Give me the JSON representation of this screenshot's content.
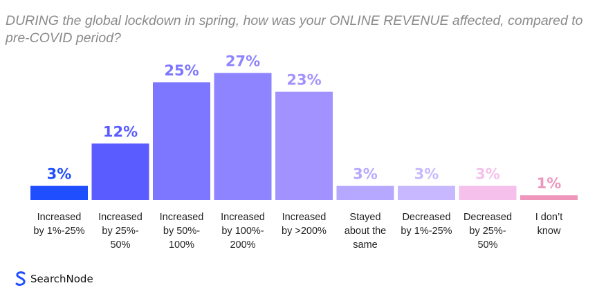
{
  "title": "DURING the global lockdown in spring, how was your ONLINE REVENUE affected, compared to pre-COVID period?",
  "brand": "SearchNode",
  "chart_data": {
    "type": "bar",
    "title": "DURING the global lockdown in spring, how was your ONLINE REVENUE affected, compared to pre-COVID period?",
    "ylim": [
      0,
      30
    ],
    "grid": false,
    "categories": [
      [
        "Increased",
        "by 1%-25%"
      ],
      [
        "Increased",
        "by 25%-",
        "50%"
      ],
      [
        "Increased",
        "by 50%-",
        "100%"
      ],
      [
        "Increased",
        "by 100%-",
        "200%"
      ],
      [
        "Increased",
        "by >200%"
      ],
      [
        "Stayed",
        "about the",
        "same"
      ],
      [
        "Decreased",
        "by 1%-25%"
      ],
      [
        "Decreased",
        "by 25%-",
        "50%"
      ],
      [
        "I don’t",
        "know"
      ]
    ],
    "values": [
      3,
      12,
      25,
      27,
      23,
      3,
      3,
      3,
      1
    ],
    "value_labels": [
      "3%",
      "12%",
      "25%",
      "27%",
      "23%",
      "3%",
      "3%",
      "3%",
      "1%"
    ],
    "colors": [
      "#1f4eff",
      "#5a5cff",
      "#7d76ff",
      "#8f84ff",
      "#a292ff",
      "#b7a8ff",
      "#c8b8ff",
      "#f5c0ec",
      "#ef96bd"
    ],
    "label_colors": [
      "#1f4eff",
      "#5a5cff",
      "#7d76ff",
      "#8f84ff",
      "#a292ff",
      "#b7a8ff",
      "#c8b8ff",
      "#f5c0ec",
      "#ef96bd"
    ]
  }
}
